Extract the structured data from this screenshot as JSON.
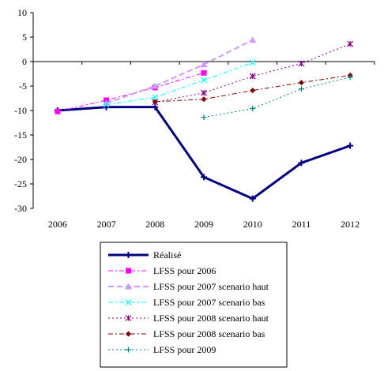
{
  "chart_data": {
    "type": "line",
    "title": "",
    "xlabel": "",
    "ylabel": "",
    "categories": [
      "2006",
      "2007",
      "2008",
      "2009",
      "2010",
      "2011",
      "2012"
    ],
    "ylim": [
      -30,
      10
    ],
    "yticks": [
      10,
      5,
      0,
      -5,
      -10,
      -15,
      -20,
      -25,
      -30
    ],
    "grid": false,
    "legend_position": "bottom",
    "series": [
      {
        "name": "Réalisé",
        "color": "#000080",
        "style": "solid",
        "width": 3,
        "marker": "plus",
        "values": [
          -10.0,
          -9.3,
          -9.3,
          -23.6,
          -28.0,
          -20.7,
          -17.2
        ]
      },
      {
        "name": "LFSS pour 2006",
        "color": "#ff00ff",
        "style": "dashdot",
        "width": 1,
        "marker": "square",
        "values": [
          -10.2,
          -7.9,
          -5.3,
          -2.3,
          null,
          null,
          null
        ]
      },
      {
        "name": "LFSS pour 2007 scenario haut",
        "color": "#cc99ff",
        "style": "dash",
        "width": 2,
        "marker": "triangle",
        "values": [
          null,
          -8.5,
          -5.0,
          -0.6,
          4.4,
          null,
          null
        ]
      },
      {
        "name": "LFSS pour 2007 scenario bas",
        "color": "#00ffff",
        "style": "dashdot",
        "width": 1,
        "marker": "x",
        "values": [
          null,
          -8.8,
          -7.3,
          -3.8,
          -0.2,
          null,
          null
        ]
      },
      {
        "name": "LFSS pour 2008 scenario haut",
        "color": "#800080",
        "style": "dot",
        "width": 1,
        "marker": "star",
        "values": [
          null,
          null,
          -8.3,
          -6.4,
          -3.0,
          -0.4,
          3.6
        ]
      },
      {
        "name": "LFSS pour 2008 scenario bas",
        "color": "#800000",
        "style": "dashdot",
        "width": 1,
        "marker": "diamond",
        "values": [
          null,
          null,
          -8.2,
          -7.7,
          -5.9,
          -4.3,
          -2.8
        ]
      },
      {
        "name": "LFSS pour 2009",
        "color": "#008080",
        "style": "dot",
        "width": 1,
        "marker": "plus",
        "values": [
          null,
          null,
          null,
          -11.4,
          -9.6,
          -5.6,
          -3.2
        ]
      }
    ]
  }
}
